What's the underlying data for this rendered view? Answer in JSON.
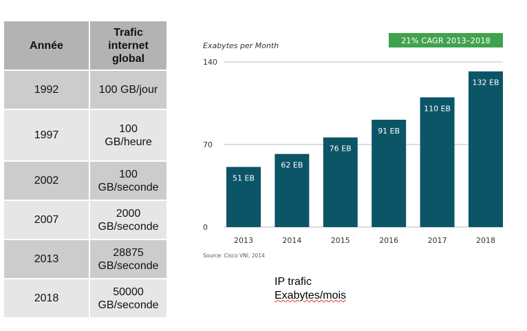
{
  "table": {
    "headers": [
      "Année",
      "Trafic internet global"
    ],
    "rows": [
      {
        "year": "1992",
        "traffic": "100 GB/jour"
      },
      {
        "year": "1997",
        "traffic": "100 GB/heure"
      },
      {
        "year": "2002",
        "traffic": "100 GB/seconde"
      },
      {
        "year": "2007",
        "traffic": "2000 GB/seconde"
      },
      {
        "year": "2013",
        "traffic": "28875 GB/seconde"
      },
      {
        "year": "2018",
        "traffic": "50000 GB/seconde"
      }
    ]
  },
  "chart_data": {
    "type": "bar",
    "title": "Exabytes per Month",
    "badge": "21% CAGR 2013–2018",
    "categories": [
      "2013",
      "2014",
      "2015",
      "2016",
      "2017",
      "2018"
    ],
    "values": [
      51,
      62,
      76,
      91,
      110,
      132
    ],
    "data_labels": [
      "51 EB",
      "62 EB",
      "76 EB",
      "91 EB",
      "110 EB",
      "132 EB"
    ],
    "yticks": [
      0,
      70,
      140
    ],
    "ylim": [
      0,
      140
    ],
    "grid": true,
    "source": "Source: Cisco VNI, 2014",
    "bar_color": "#0b5567",
    "badge_color": "#3fa34d"
  },
  "note": {
    "line1": "IP trafic",
    "line2": "Exabytes/mois"
  }
}
